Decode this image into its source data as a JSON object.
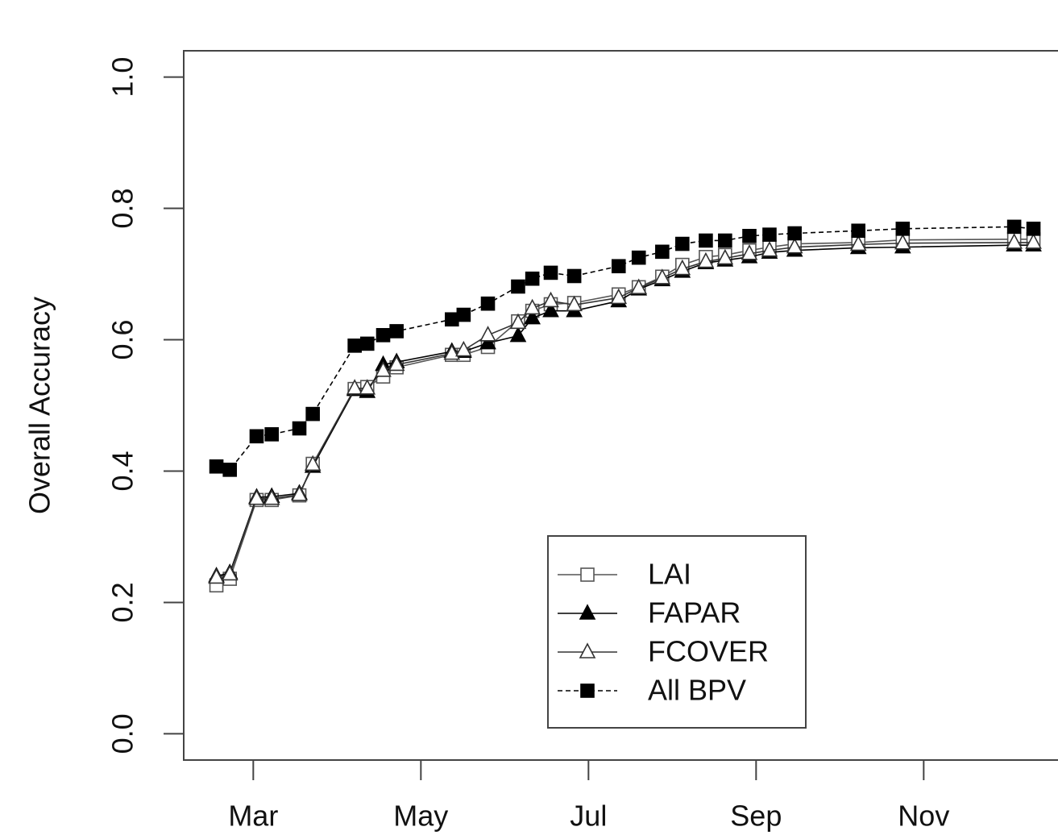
{
  "chart_data": {
    "type": "line",
    "ylabel": "Overall Accuracy",
    "x": [
      2.56,
      2.72,
      3.04,
      3.22,
      3.55,
      3.71,
      4.21,
      4.36,
      4.55,
      4.71,
      5.37,
      5.51,
      5.8,
      6.16,
      6.33,
      6.55,
      6.83,
      7.36,
      7.6,
      7.88,
      8.12,
      8.4,
      8.63,
      8.92,
      9.16,
      9.46,
      10.22,
      10.75,
      12.08,
      12.31
    ],
    "xlim": [
      2.17,
      12.62
    ],
    "xticks": [
      {
        "value": 3,
        "label": "Mar"
      },
      {
        "value": 5,
        "label": "May"
      },
      {
        "value": 7,
        "label": "Jul"
      },
      {
        "value": 9,
        "label": "Sep"
      },
      {
        "value": 11,
        "label": "Nov"
      }
    ],
    "ylim": [
      -0.04,
      1.04
    ],
    "yticks": [
      {
        "value": 0,
        "label": "0.0"
      },
      0.2,
      0.4,
      0.6,
      0.8,
      {
        "value": 1,
        "label": "1.0"
      }
    ],
    "legend": "bottom",
    "series": [
      {
        "name": "LAI",
        "color": "#555555",
        "marker": "open-square",
        "dash": false,
        "values": [
          0.226,
          0.236,
          0.356,
          0.356,
          0.363,
          0.411,
          0.525,
          0.528,
          0.544,
          0.558,
          0.577,
          0.577,
          0.589,
          0.628,
          0.644,
          0.654,
          0.656,
          0.669,
          0.68,
          0.696,
          0.714,
          0.726,
          0.729,
          0.736,
          0.741,
          0.746,
          0.748,
          0.752,
          0.753,
          0.753
        ]
      },
      {
        "name": "FAPAR",
        "color": "#000000",
        "marker": "filled-triangle",
        "dash": false,
        "values": [
          0.24,
          0.245,
          0.36,
          0.361,
          0.366,
          0.407,
          0.524,
          0.521,
          0.562,
          0.566,
          0.582,
          0.582,
          0.595,
          0.606,
          0.633,
          0.644,
          0.644,
          0.659,
          0.677,
          0.691,
          0.704,
          0.717,
          0.721,
          0.726,
          0.733,
          0.736,
          0.74,
          0.741,
          0.744,
          0.744
        ]
      },
      {
        "name": "FCOVER",
        "color": "#333333",
        "marker": "open-triangle",
        "dash": false,
        "values": [
          0.238,
          0.243,
          0.358,
          0.358,
          0.364,
          0.41,
          0.526,
          0.526,
          0.553,
          0.562,
          0.579,
          0.584,
          0.607,
          0.626,
          0.648,
          0.659,
          0.653,
          0.664,
          0.679,
          0.694,
          0.708,
          0.719,
          0.724,
          0.731,
          0.736,
          0.741,
          0.745,
          0.747,
          0.748,
          0.748
        ]
      },
      {
        "name": "All BPV",
        "color": "#000000",
        "marker": "filled-square",
        "dash": true,
        "values": [
          0.407,
          0.402,
          0.453,
          0.456,
          0.465,
          0.487,
          0.591,
          0.594,
          0.607,
          0.613,
          0.631,
          0.638,
          0.655,
          0.681,
          0.693,
          0.702,
          0.697,
          0.712,
          0.725,
          0.734,
          0.746,
          0.751,
          0.751,
          0.758,
          0.76,
          0.762,
          0.766,
          0.769,
          0.772,
          0.769
        ]
      }
    ]
  }
}
